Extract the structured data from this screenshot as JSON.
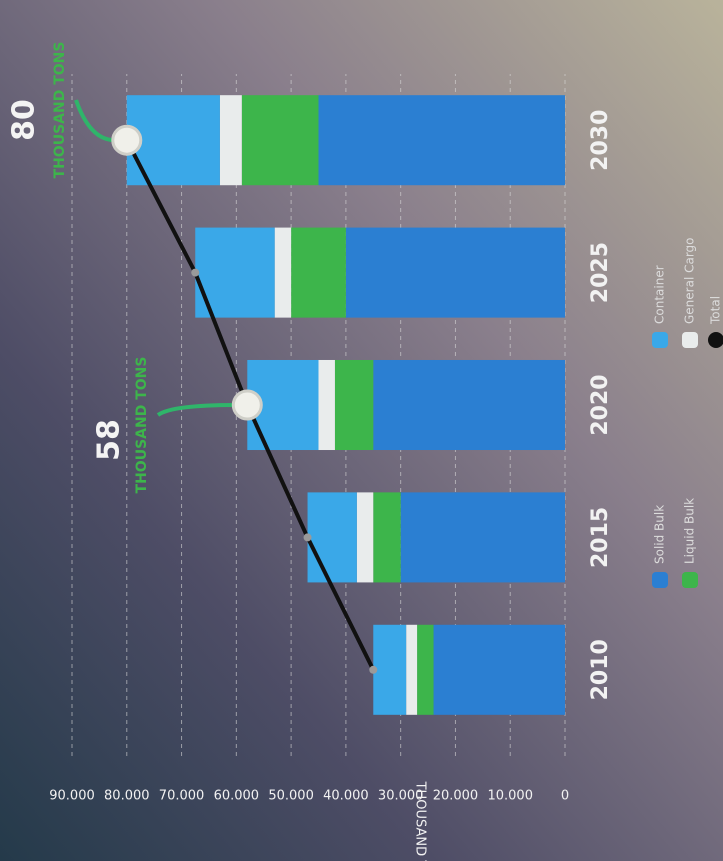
{
  "chart_data": {
    "type": "stacked_bar_line",
    "y_label": "THOUSAND TONS",
    "categories": [
      "2010",
      "2015",
      "2020",
      "2025",
      "2030"
    ],
    "series": [
      {
        "name": "Solid Bulk",
        "color": "#2b7fd2",
        "values": [
          24000,
          30000,
          35000,
          40000,
          45000
        ]
      },
      {
        "name": "Liquid Bulk",
        "color": "#3db54b",
        "values": [
          3000,
          5000,
          7000,
          10000,
          14000
        ]
      },
      {
        "name": "General Cargo",
        "color": "#e9ecec",
        "values": [
          2000,
          3000,
          3000,
          3000,
          4000
        ]
      },
      {
        "name": "Container",
        "color": "#3aa8e8",
        "values": [
          6000,
          9000,
          13000,
          14500,
          17000
        ]
      },
      {
        "name": "Total",
        "type": "line",
        "color": "#111111",
        "values": [
          35000,
          47000,
          58000,
          67500,
          80000
        ]
      }
    ],
    "ylim": [
      0,
      90000
    ],
    "yticks": [
      0,
      {
        "value": 10000,
        "label": "10.000"
      },
      {
        "value": 20000,
        "label": "20.000"
      },
      {
        "value": 30000,
        "label": "30.000"
      },
      {
        "value": 40000,
        "label": "40.000"
      },
      {
        "value": 50000,
        "label": "50.000"
      },
      {
        "value": 60000,
        "label": "60.000"
      },
      {
        "value": 70000,
        "label": "70.000"
      },
      {
        "value": 80000,
        "label": "80.000"
      },
      {
        "value": 90000,
        "label": "90.000"
      }
    ],
    "grid": true,
    "annotations": [
      {
        "label": "58",
        "note": "THOUSAND TONS"
      },
      {
        "label": "80",
        "note": "THOUSAND TONS"
      }
    ]
  }
}
